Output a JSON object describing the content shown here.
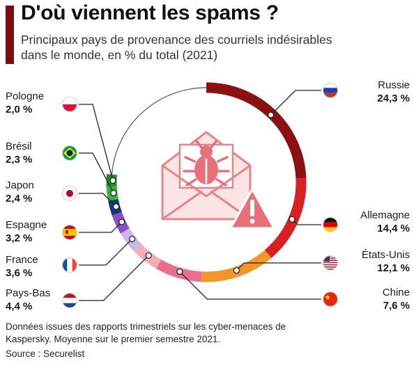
{
  "header": {
    "title": "D'où viennent les spams ?",
    "subtitle": "Principaux pays de provenance des courriels indésirables dans le monde, en % du total (2021)"
  },
  "footer": {
    "note": "Données issues des rapports trimestriels sur les cyber-menaces de Kaspersky. Moyenne sur le premier semestre 2021.",
    "source": "Source : Securelist"
  },
  "chart_data": {
    "type": "donut",
    "title": "D'où viennent les spams ?",
    "unit": "%",
    "series": [
      {
        "name": "Russie",
        "value": 24.3,
        "label": "24,3 %",
        "color": "#8b1014",
        "flag": "russia-flag-icon"
      },
      {
        "name": "Allemagne",
        "value": 14.4,
        "label": "14,4 %",
        "color": "#d91f26",
        "flag": "germany-flag-icon"
      },
      {
        "name": "États-Unis",
        "value": 12.1,
        "label": "12,1 %",
        "color": "#f0962b",
        "flag": "usa-flag-icon"
      },
      {
        "name": "Chine",
        "value": 7.6,
        "label": "7,6 %",
        "color": "#e8708e",
        "flag": "china-flag-icon"
      },
      {
        "name": "Pays-Bas",
        "value": 4.4,
        "label": "4,4 %",
        "color": "#f7adb4",
        "flag": "netherlands-flag-icon"
      },
      {
        "name": "France",
        "value": 3.6,
        "label": "3,6 %",
        "color": "#c8b7ea",
        "flag": "france-flag-icon"
      },
      {
        "name": "Espagne",
        "value": 3.2,
        "label": "3,2 %",
        "color": "#8d4fc9",
        "flag": "spain-flag-icon"
      },
      {
        "name": "Japon",
        "value": 2.4,
        "label": "2,4 %",
        "color": "#16367e",
        "flag": "japan-flag-icon"
      },
      {
        "name": "Brésil",
        "value": 2.3,
        "label": "2,3 %",
        "color": "#36b244",
        "flag": "brazil-flag-icon"
      },
      {
        "name": "Pologne",
        "value": 2.0,
        "label": "2,0 %",
        "color": "#238a2b",
        "flag": "poland-flag-icon"
      }
    ]
  }
}
